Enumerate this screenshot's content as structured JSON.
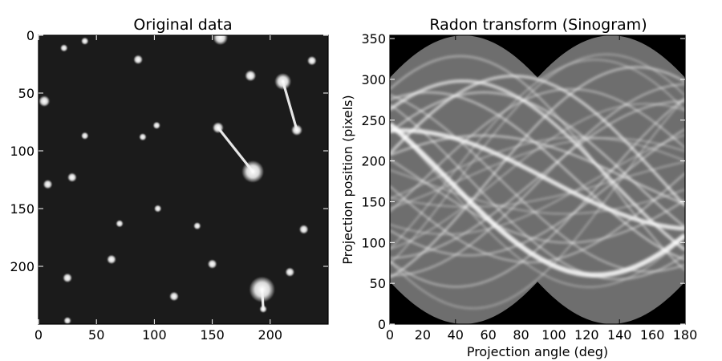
{
  "chart_data": [
    {
      "type": "heatmap",
      "title": "Original data",
      "xlabel": "",
      "ylabel": "",
      "xlim": [
        0,
        250
      ],
      "ylim": [
        250,
        0
      ],
      "xticks": [
        0,
        50,
        100,
        150,
        200
      ],
      "yticks": [
        0,
        50,
        100,
        150,
        200
      ],
      "colormap": "gray",
      "background_color": "#1b1b1b",
      "blobs": [
        {
          "x": 157,
          "y": 2,
          "r": 4
        },
        {
          "x": 40,
          "y": 5,
          "r": 2
        },
        {
          "x": 22,
          "y": 11,
          "r": 2
        },
        {
          "x": 86,
          "y": 21,
          "r": 2.5
        },
        {
          "x": 236,
          "y": 22,
          "r": 2.5
        },
        {
          "x": 183,
          "y": 35,
          "r": 3
        },
        {
          "x": 211,
          "y": 40,
          "r": 4.5
        },
        {
          "x": 223,
          "y": 82,
          "r": 3
        },
        {
          "x": 5,
          "y": 57,
          "r": 3
        },
        {
          "x": 102,
          "y": 78,
          "r": 2
        },
        {
          "x": 155,
          "y": 80,
          "r": 3
        },
        {
          "x": 40,
          "y": 87,
          "r": 2
        },
        {
          "x": 90,
          "y": 88,
          "r": 2
        },
        {
          "x": 185,
          "y": 118,
          "r": 6
        },
        {
          "x": 29,
          "y": 123,
          "r": 2.5
        },
        {
          "x": 8,
          "y": 129,
          "r": 2.5
        },
        {
          "x": 103,
          "y": 150,
          "r": 2
        },
        {
          "x": 70,
          "y": 163,
          "r": 2
        },
        {
          "x": 137,
          "y": 165,
          "r": 2
        },
        {
          "x": 229,
          "y": 168,
          "r": 2.5
        },
        {
          "x": 63,
          "y": 194,
          "r": 2.5
        },
        {
          "x": 150,
          "y": 198,
          "r": 2.5
        },
        {
          "x": 217,
          "y": 205,
          "r": 2.5
        },
        {
          "x": 25,
          "y": 210,
          "r": 2.5
        },
        {
          "x": 193,
          "y": 220,
          "r": 7
        },
        {
          "x": 117,
          "y": 226,
          "r": 2.5
        },
        {
          "x": 194,
          "y": 237,
          "r": 2
        },
        {
          "x": 25,
          "y": 247,
          "r": 2
        }
      ],
      "streaks": [
        {
          "x1": 211,
          "y1": 40,
          "x2": 223,
          "y2": 82
        },
        {
          "x1": 155,
          "y1": 80,
          "x2": 185,
          "y2": 118
        },
        {
          "x1": 193,
          "y1": 220,
          "x2": 194,
          "y2": 237
        }
      ]
    },
    {
      "type": "heatmap",
      "title": "Radon transform (Sinogram)",
      "xlabel": "Projection angle (deg)",
      "ylabel": "Projection position (pixels)",
      "xlim": [
        0,
        180
      ],
      "ylim": [
        0,
        354
      ],
      "xticks": [
        0,
        20,
        40,
        60,
        80,
        100,
        120,
        140,
        160,
        180
      ],
      "yticks": [
        0,
        50,
        100,
        150,
        200,
        250,
        300,
        350
      ],
      "colormap": "gray",
      "center": 177,
      "envelope_half_width": 125
    }
  ]
}
